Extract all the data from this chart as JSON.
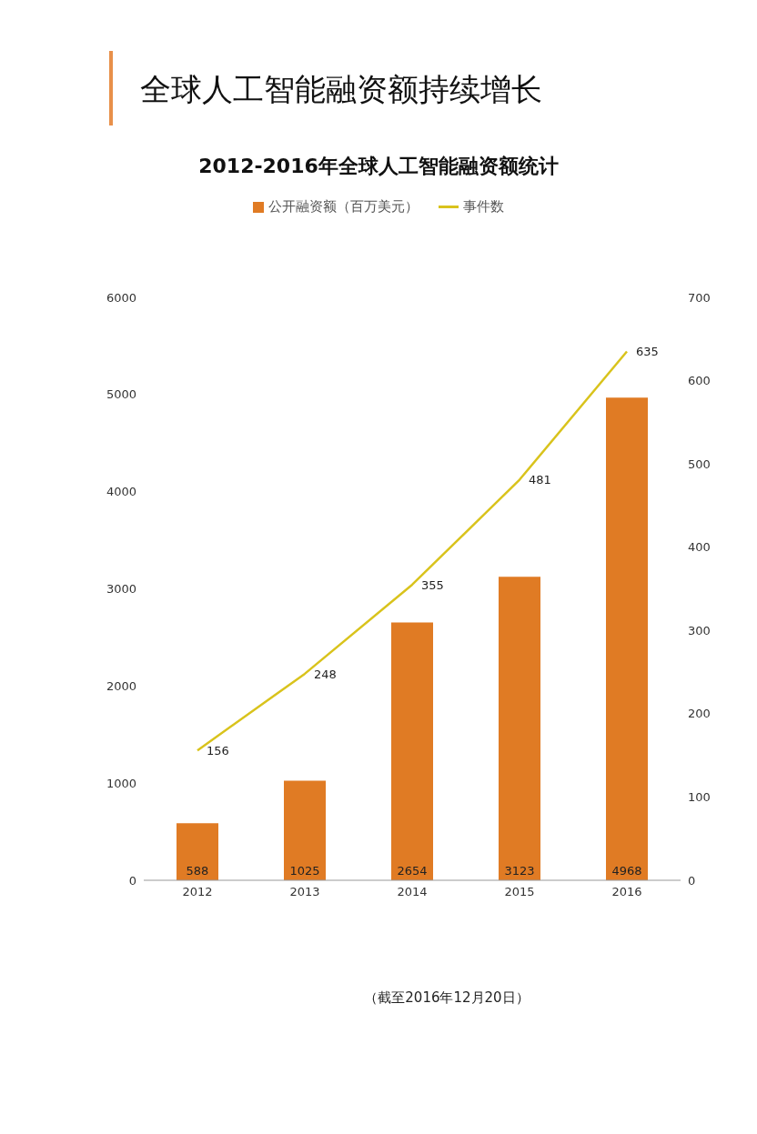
{
  "chart_data": {
    "type": "bar",
    "title": "全球人工智能融资额持续增长",
    "subtitle": "2012-2016年全球人工智能融资额统计",
    "categories": [
      "2012",
      "2013",
      "2014",
      "2015",
      "2016"
    ],
    "series": [
      {
        "name": "公开融资额（百万美元）",
        "color": "#e07b24",
        "values": [
          588,
          1025,
          2654,
          3123,
          4968
        ]
      },
      {
        "name": "事件数",
        "type": "line",
        "axis": "y2",
        "color": "#d9c31c",
        "values": [
          156,
          248,
          355,
          481,
          635
        ]
      }
    ],
    "ylim": [
      0,
      6000
    ],
    "yticks": [
      0,
      1000,
      2000,
      3000,
      4000,
      5000,
      6000
    ],
    "y2lim": [
      0,
      700
    ],
    "y2ticks": [
      0,
      100,
      200,
      300,
      400,
      500,
      600,
      700
    ],
    "data_labels": true,
    "legend": "top",
    "grid": false,
    "marker": "none",
    "annotations": [
      "（截至2016年12月20日）"
    ]
  }
}
